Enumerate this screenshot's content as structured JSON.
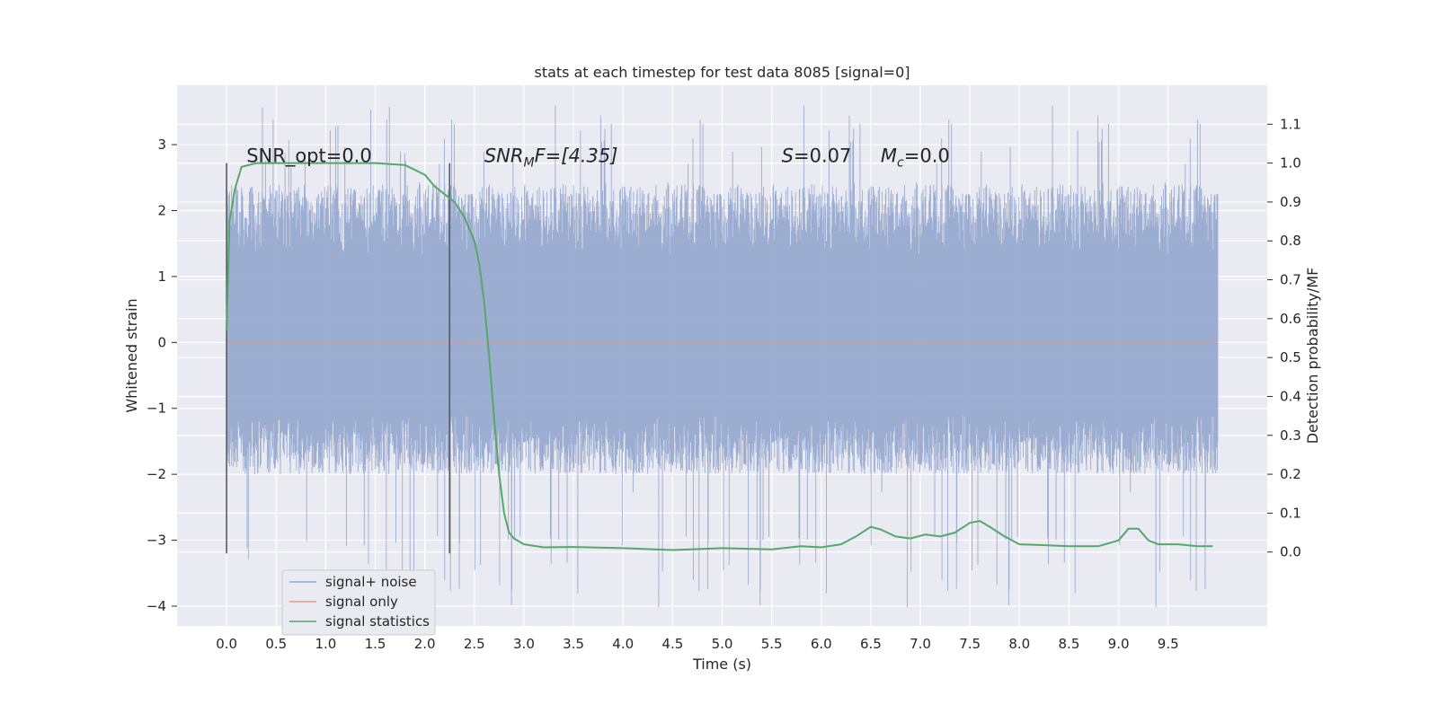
{
  "chart_data": {
    "type": "line",
    "title": "stats at each timestep for test data 8085 [signal=0]",
    "xlabel": "Time (s)",
    "ylabel_left": "Whitened strain",
    "ylabel_right": "Detection probability/MF",
    "xlim": [
      -0.5,
      10.5
    ],
    "ylim_left": [
      -4.3,
      3.9
    ],
    "ylim_right": [
      -0.19,
      1.2
    ],
    "x_ticks": [
      "0.0",
      "0.5",
      "1.0",
      "1.5",
      "2.0",
      "2.5",
      "3.0",
      "3.5",
      "4.0",
      "4.5",
      "5.0",
      "5.5",
      "6.0",
      "6.5",
      "7.0",
      "7.5",
      "8.0",
      "8.5",
      "9.0",
      "9.5"
    ],
    "y_ticks_left": [
      "−4",
      "−3",
      "−2",
      "−1",
      "0",
      "1",
      "2",
      "3"
    ],
    "y_ticks_right": [
      "0.0",
      "0.1",
      "0.2",
      "0.3",
      "0.4",
      "0.5",
      "0.6",
      "0.7",
      "0.8",
      "0.9",
      "1.0",
      "1.1"
    ],
    "grid": true,
    "legend_position": "lower-left",
    "annotations": {
      "snr_opt": "SNR_opt=0.0",
      "snr_mf_italic": "SNR",
      "snr_mf_sub": "M",
      "snr_mf_rest": "F=[4.35]",
      "s_italic": "S",
      "s_rest": "=0.07",
      "mc_italic": "M",
      "mc_sub": "c",
      "mc_rest": "=0.0"
    },
    "vertical_markers": [
      0.0,
      2.25
    ],
    "series": [
      {
        "name": "signal+ noise",
        "color": "#98aad0",
        "axis": "left",
        "x_range": [
          0.0,
          10.0
        ],
        "envelope": {
          "typical_min": -2.0,
          "typical_max": 2.4,
          "extreme_min": -4.05,
          "extreme_max": 3.6
        }
      },
      {
        "name": "signal only",
        "color": "#e49a7e",
        "axis": "left",
        "x": [
          0.0,
          10.0
        ],
        "values": [
          0.0,
          0.0
        ]
      },
      {
        "name": "signal statistics",
        "color": "#55a868",
        "axis": "right",
        "x": [
          0.0,
          0.03,
          0.08,
          0.15,
          0.3,
          0.6,
          1.0,
          1.5,
          1.8,
          2.0,
          2.1,
          2.2,
          2.3,
          2.4,
          2.5,
          2.55,
          2.6,
          2.65,
          2.7,
          2.75,
          2.8,
          2.85,
          2.9,
          3.0,
          3.2,
          3.5,
          4.0,
          4.5,
          5.0,
          5.5,
          5.8,
          6.0,
          6.2,
          6.35,
          6.5,
          6.6,
          6.75,
          6.9,
          7.05,
          7.2,
          7.35,
          7.5,
          7.6,
          7.7,
          7.85,
          8.0,
          8.2,
          8.5,
          8.8,
          9.0,
          9.1,
          9.2,
          9.3,
          9.4,
          9.6,
          9.8,
          9.95
        ],
        "values": [
          0.57,
          0.85,
          0.93,
          0.99,
          1.0,
          1.0,
          1.0,
          1.0,
          0.995,
          0.97,
          0.94,
          0.92,
          0.9,
          0.86,
          0.8,
          0.74,
          0.64,
          0.5,
          0.34,
          0.2,
          0.1,
          0.05,
          0.035,
          0.02,
          0.012,
          0.013,
          0.01,
          0.005,
          0.01,
          0.007,
          0.015,
          0.012,
          0.02,
          0.04,
          0.065,
          0.058,
          0.04,
          0.035,
          0.045,
          0.04,
          0.05,
          0.075,
          0.08,
          0.065,
          0.04,
          0.02,
          0.018,
          0.015,
          0.015,
          0.03,
          0.06,
          0.06,
          0.03,
          0.02,
          0.02,
          0.015,
          0.015
        ]
      }
    ]
  }
}
